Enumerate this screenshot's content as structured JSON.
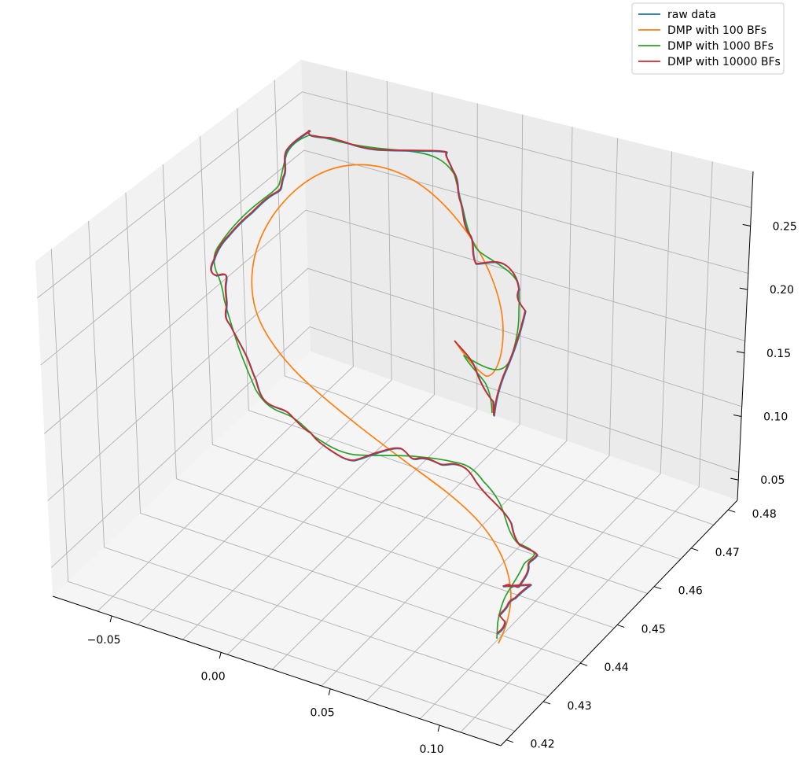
{
  "chart_data": {
    "type": "line3d",
    "legend_position": "top-right",
    "grid": true,
    "axes": {
      "x": {
        "ticks": [
          "−0.05",
          "0.00",
          "0.05",
          "0.10"
        ],
        "tick_values": [
          -0.05,
          0.0,
          0.05,
          0.1
        ]
      },
      "y": {
        "ticks": [
          "0.42",
          "0.43",
          "0.44",
          "0.45",
          "0.46",
          "0.47",
          "0.48"
        ],
        "tick_values": [
          0.42,
          0.43,
          0.44,
          0.45,
          0.46,
          0.47,
          0.48
        ]
      },
      "z": {
        "ticks": [
          "0.05",
          "0.10",
          "0.15",
          "0.20",
          "0.25"
        ],
        "tick_values": [
          0.05,
          0.1,
          0.15,
          0.2,
          0.25
        ]
      }
    },
    "series": [
      {
        "name": "raw data",
        "color": "#1f77b4"
      },
      {
        "name": "DMP with 100 BFs",
        "color": "#ff7f0e"
      },
      {
        "name": "DMP with 1000 BFs",
        "color": "#2ca02c"
      },
      {
        "name": "DMP with 10000 BFs",
        "color": "#d62728"
      }
    ]
  }
}
